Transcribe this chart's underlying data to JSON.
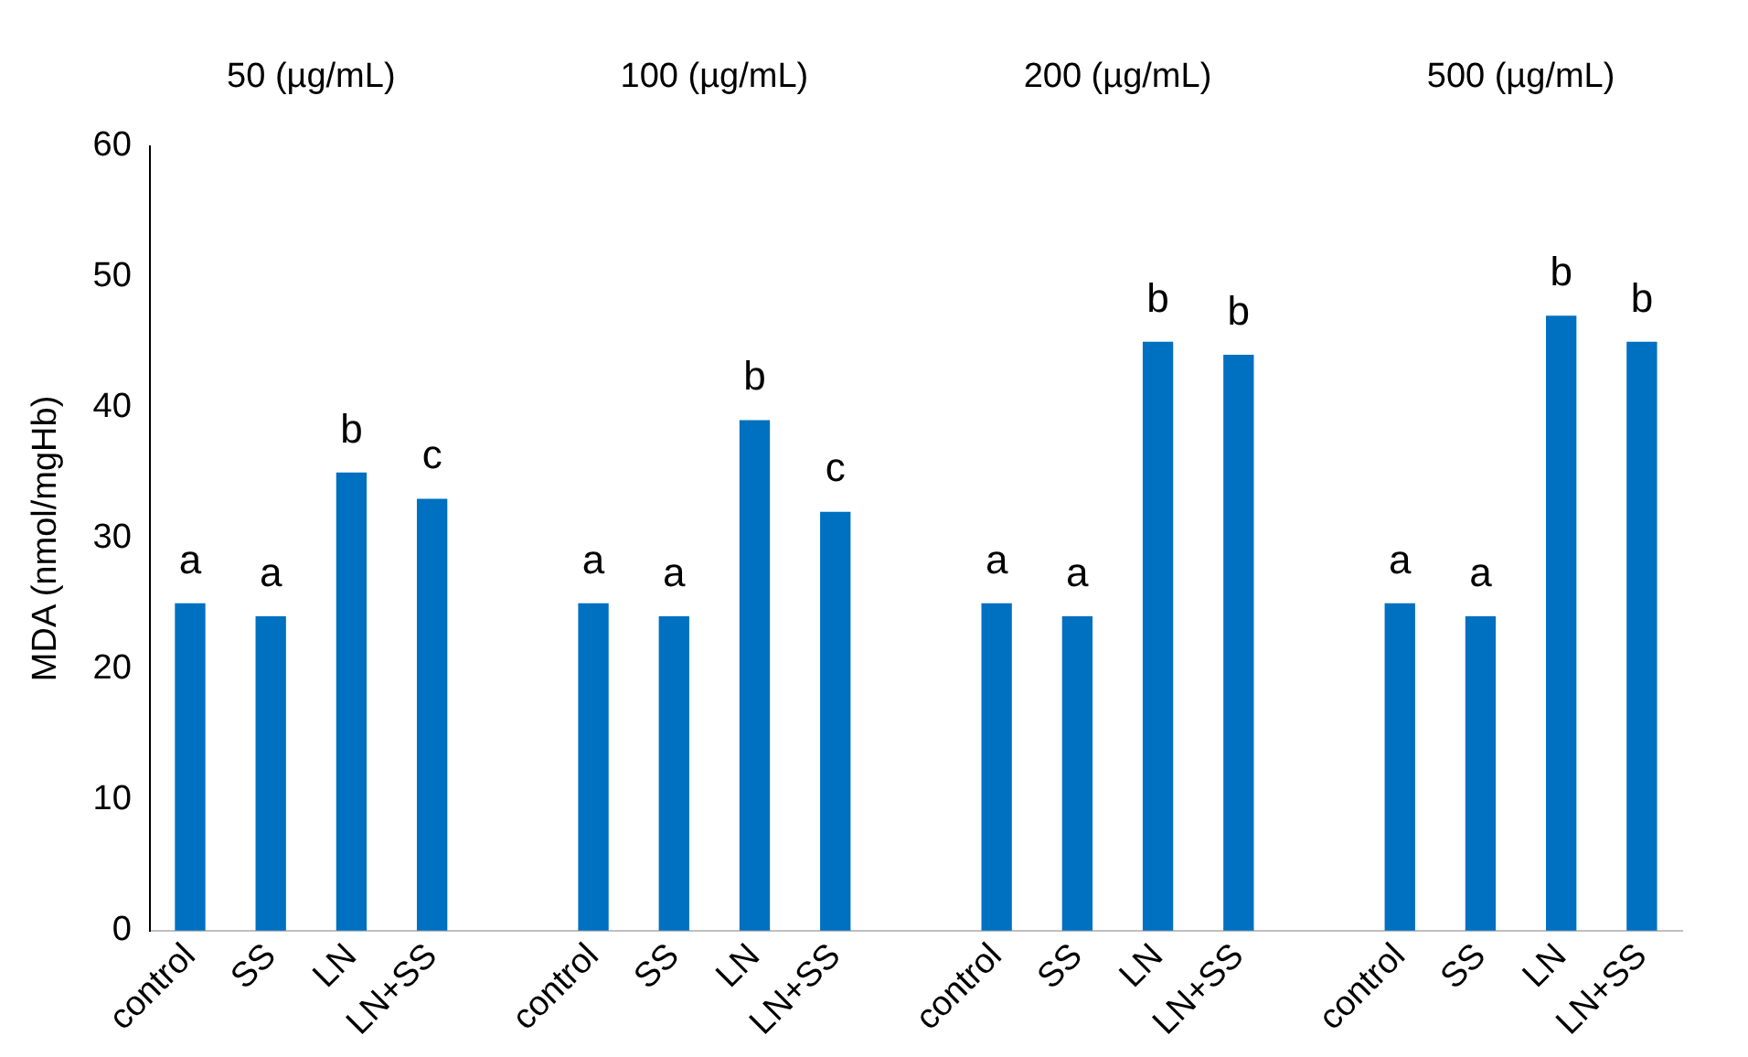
{
  "chart_data": {
    "type": "bar",
    "ylabel": "MDA (nmol/mgHb)",
    "categories": [
      "control",
      "SS",
      "LN",
      "LN+SS",
      null,
      "control",
      "SS",
      "LN",
      "LN+SS",
      null,
      "control",
      "SS",
      "LN",
      "LN+SS",
      null,
      "control",
      "SS",
      "LN",
      "LN+SS"
    ],
    "values": [
      25,
      24,
      35,
      33,
      null,
      25,
      24,
      39,
      32,
      null,
      25,
      24,
      45,
      44,
      null,
      25,
      24,
      47,
      45
    ],
    "value_labels": [
      "a",
      "a",
      "b",
      "c",
      null,
      "a",
      "a",
      "b",
      "c",
      null,
      "a",
      "a",
      "b",
      "b",
      null,
      "a",
      "a",
      "b",
      "b"
    ],
    "color": "#0070c0",
    "ylim": [
      0,
      60
    ],
    "yticks": [
      0,
      10,
      20,
      30,
      40,
      50,
      60
    ],
    "grid": false,
    "legend": false,
    "annotations": [
      "50 (µg/mL)",
      "100 (µg/mL)",
      "200 (µg/mL)",
      "500 (µg/mL)"
    ]
  }
}
